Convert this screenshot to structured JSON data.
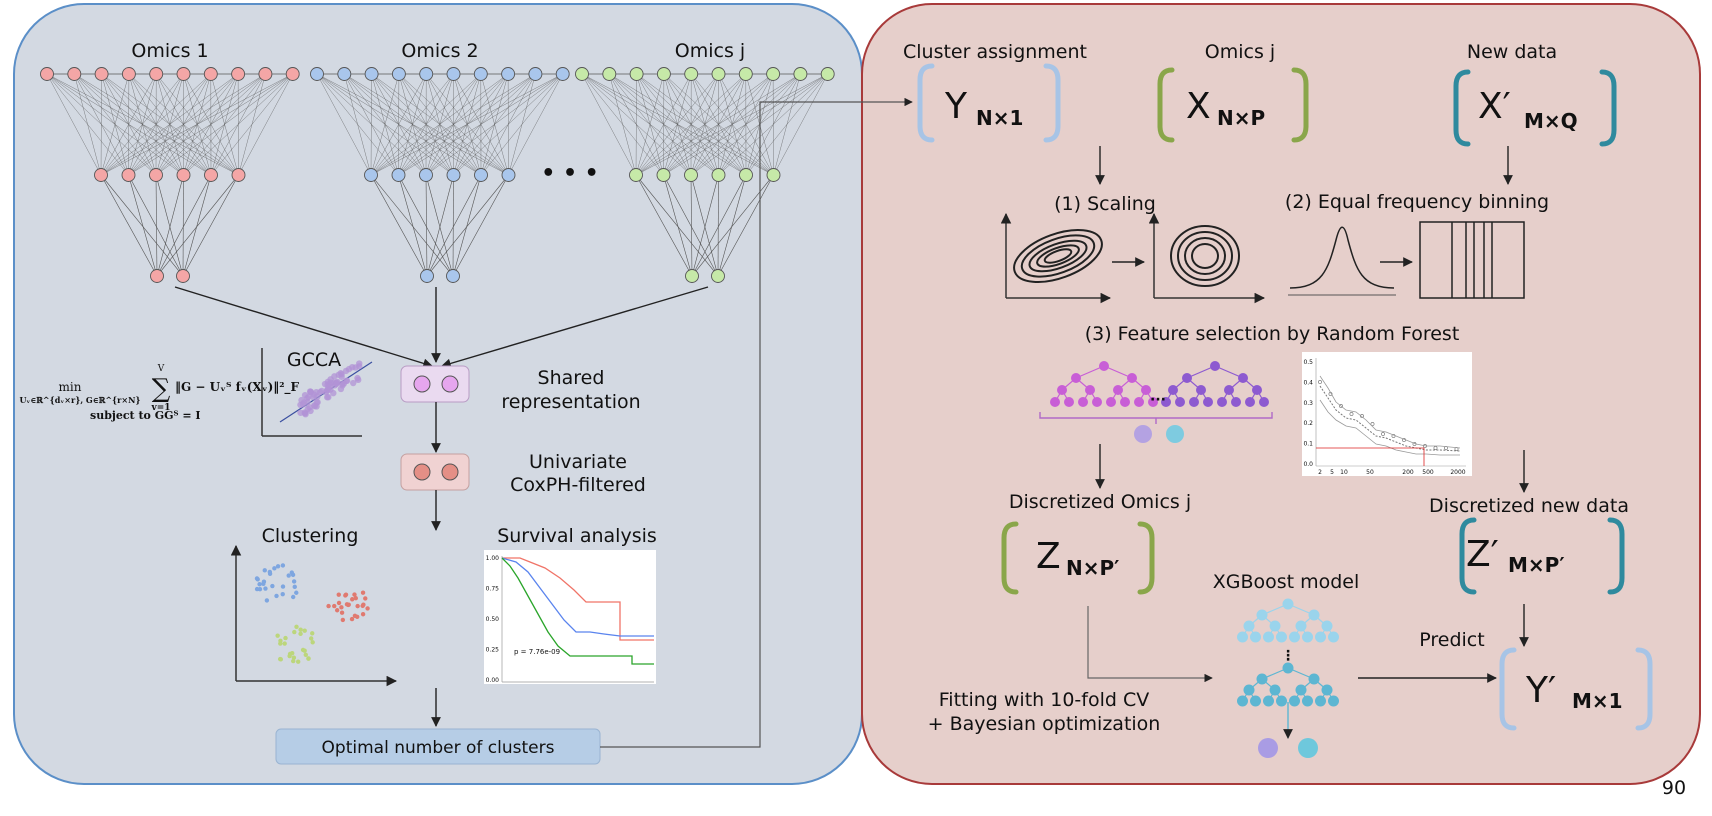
{
  "left_panel": {
    "omics": [
      "Omics 1",
      "Omics 2",
      "Omics j"
    ],
    "ellipsis": "• • •",
    "gcca_label": "GCCA",
    "formula": {
      "main": "min",
      "sub": "Uᵥ∈ℝ^{dᵥ×r}, G∈ℝ^{r×N}",
      "sum_top": "V",
      "sum_sym": "∑",
      "sum_bottom": "v=1",
      "body": "‖G − Uᵥᵀ fᵥ(Xᵥ)‖²_F",
      "constraint": "subject to GGᵀ = I"
    },
    "shared_representation": [
      "Shared",
      "representation"
    ],
    "univariate": [
      "Univariate",
      "CoxPH-filtered"
    ],
    "clustering": "Clustering",
    "survival_analysis": "Survival analysis",
    "km_pvalue": "p = 7.76e-09",
    "km_yticks": [
      "1.00",
      "0.75",
      "0.50",
      "0.25",
      "0.00"
    ],
    "optimal_clusters": "Optimal number of clusters"
  },
  "right_panel": {
    "cluster_assignment": "Cluster assignment",
    "omics_j": "Omics j",
    "new_data": "New data",
    "Y": {
      "main": "Y",
      "sub": "N×1"
    },
    "X": {
      "main": "X",
      "sub": "N×P"
    },
    "Xp": {
      "main": "X′",
      "sub": "M×Q"
    },
    "scaling": "(1) Scaling",
    "binning": "(2) Equal frequency binning",
    "feature_selection": "(3) Feature selection by Random Forest",
    "rf_yticks": [
      "0.5",
      "0.4",
      "0.3",
      "0.2",
      "0.1",
      "0.0"
    ],
    "rf_xticks": [
      "2",
      "5",
      "10",
      "50",
      "200",
      "500",
      "2000"
    ],
    "discretized_omics": "Discretized Omics j",
    "discretized_new": "Discretized new data",
    "Z": {
      "main": "Z",
      "sub": "N×P′"
    },
    "Zp": {
      "main": "Z′",
      "sub": "M×P′"
    },
    "xgboost": "XGBoost model",
    "predict": "Predict",
    "fitting": [
      "Fitting with 10-fold CV",
      "+ Bayesian optimization"
    ],
    "Yp": {
      "main": "Y′",
      "sub": "M×1"
    }
  },
  "page_number": "90",
  "colors": {
    "left_bg": "#d3d9e2",
    "left_border": "#5b8fc8",
    "right_bg": "#e6cfcb",
    "right_border": "#a83a3a",
    "omics1_node": "#f4a6a6",
    "omics2_node": "#a9c6ec",
    "omicsj_node": "#c6e9a8",
    "bracket_blue": "#a7c4e6",
    "bracket_green": "#8aa64a",
    "bracket_teal": "#2f8a9e"
  }
}
